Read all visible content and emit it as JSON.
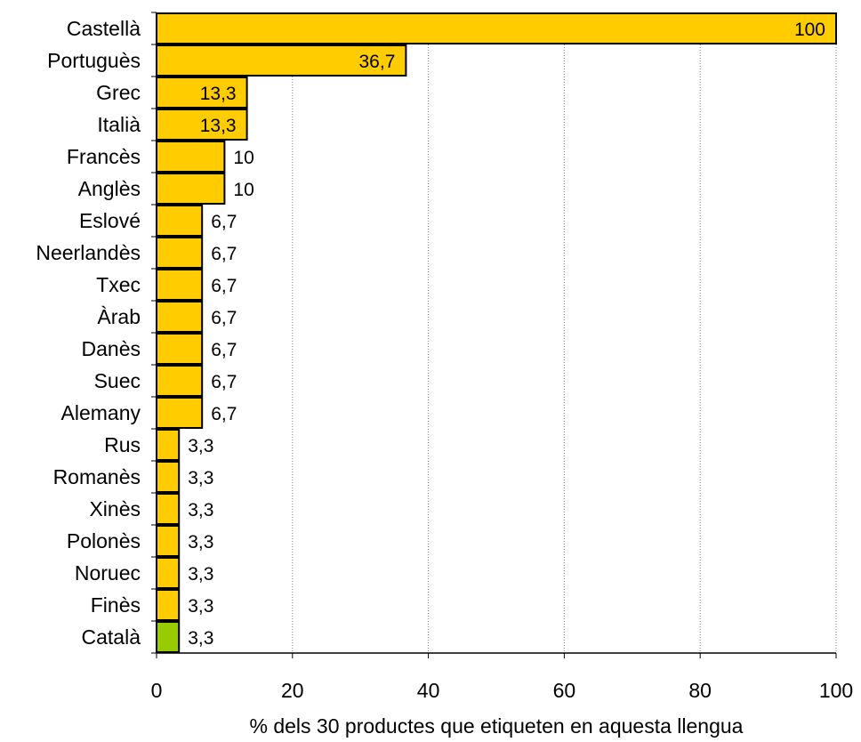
{
  "chart_data": {
    "type": "bar",
    "orientation": "horizontal",
    "categories": [
      "Castellà",
      "Portuguès",
      "Grec",
      "Italià",
      "Francès",
      "Anglès",
      "Eslové",
      "Neerlandès",
      "Txec",
      "Àrab",
      "Danès",
      "Suec",
      "Alemany",
      "Rus",
      "Romanès",
      "Xinès",
      "Polonès",
      "Noruec",
      "Finès",
      "Català"
    ],
    "values": [
      100,
      36.7,
      13.3,
      13.3,
      10,
      10,
      6.7,
      6.7,
      6.7,
      6.7,
      6.7,
      6.7,
      6.7,
      3.3,
      3.3,
      3.3,
      3.3,
      3.3,
      3.3,
      3.3
    ],
    "value_labels": [
      "100",
      "36,7",
      "13,3",
      "13,3",
      "10",
      "10",
      "6,7",
      "6,7",
      "6,7",
      "6,7",
      "6,7",
      "6,7",
      "6,7",
      "3,3",
      "3,3",
      "3,3",
      "3,3",
      "3,3",
      "3,3",
      "3,3"
    ],
    "bar_colors": [
      "#FFCC00",
      "#FFCC00",
      "#FFCC00",
      "#FFCC00",
      "#FFCC00",
      "#FFCC00",
      "#FFCC00",
      "#FFCC00",
      "#FFCC00",
      "#FFCC00",
      "#FFCC00",
      "#FFCC00",
      "#FFCC00",
      "#FFCC00",
      "#FFCC00",
      "#FFCC00",
      "#FFCC00",
      "#FFCC00",
      "#FFCC00",
      "#99CC00"
    ],
    "title": "",
    "xlabel": "% dels 30 productes que etiqueten en aquesta llengua",
    "ylabel": "",
    "xlim": [
      0,
      100
    ],
    "x_ticks": [
      0,
      20,
      40,
      60,
      80,
      100
    ],
    "x_tick_labels": [
      "0",
      "20",
      "40",
      "60",
      "80",
      "100"
    ],
    "grid": "vertical, dotted",
    "legend": "none"
  },
  "colors": {
    "bar_default": "#FFCC00",
    "bar_highlight": "#99CC00",
    "bar_border": "#000000",
    "grid": "#808080"
  }
}
